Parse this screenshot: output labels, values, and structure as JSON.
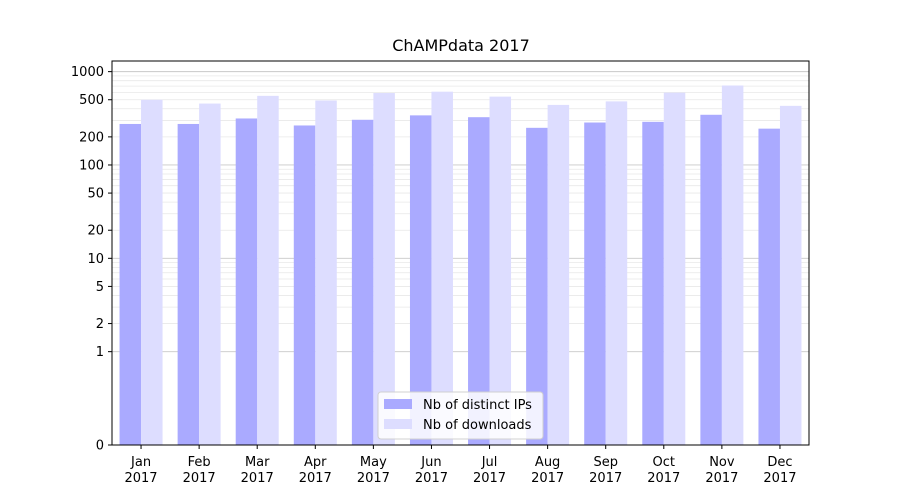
{
  "chart_data": {
    "type": "bar",
    "title": "ChAMPdata 2017",
    "xlabel": "",
    "ylabel": "",
    "y_scale": "symlog",
    "ylim": [
      0,
      1300
    ],
    "y_ticks": [
      0,
      1,
      2,
      5,
      10,
      20,
      50,
      100,
      200,
      500,
      1000
    ],
    "grid": "horizontal major and minor lines",
    "categories": [
      "Jan 2017",
      "Feb 2017",
      "Mar 2017",
      "Apr 2017",
      "May 2017",
      "Jun 2017",
      "Jul 2017",
      "Aug 2017",
      "Sep 2017",
      "Oct 2017",
      "Nov 2017",
      "Dec 2017"
    ],
    "category_lines": [
      [
        "Jan",
        "2017"
      ],
      [
        "Feb",
        "2017"
      ],
      [
        "Mar",
        "2017"
      ],
      [
        "Apr",
        "2017"
      ],
      [
        "May",
        "2017"
      ],
      [
        "Jun",
        "2017"
      ],
      [
        "Jul",
        "2017"
      ],
      [
        "Aug",
        "2017"
      ],
      [
        "Sep",
        "2017"
      ],
      [
        "Oct",
        "2017"
      ],
      [
        "Nov",
        "2017"
      ],
      [
        "Dec",
        "2017"
      ]
    ],
    "series": [
      {
        "name": "Nb of distinct IPs",
        "color": "#aaaaff",
        "values": [
          275,
          275,
          315,
          265,
          305,
          340,
          325,
          250,
          285,
          290,
          345,
          245
        ]
      },
      {
        "name": "Nb of downloads",
        "color": "#ddddff",
        "values": [
          500,
          455,
          550,
          490,
          590,
          610,
          540,
          440,
          480,
          595,
          710,
          430
        ]
      }
    ],
    "legend": {
      "position": "bottom-center"
    }
  }
}
